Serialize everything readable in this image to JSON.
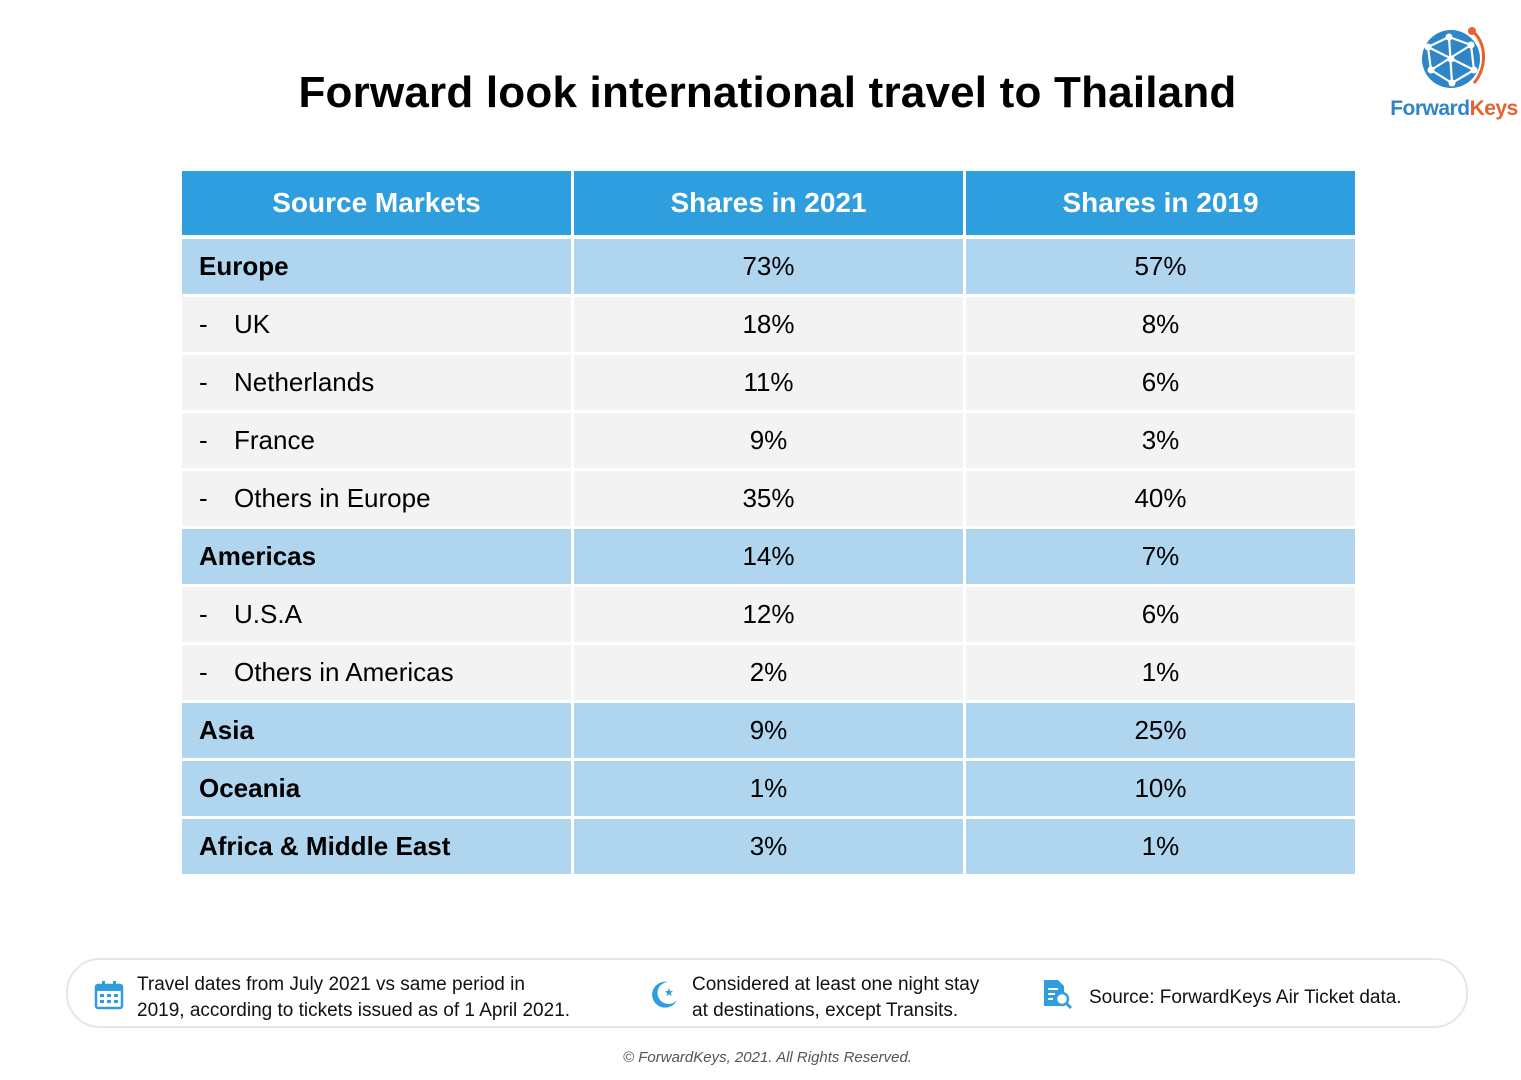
{
  "title": "Forward look international travel to Thailand",
  "logo": {
    "brand_part1": "Forward",
    "brand_part2": "Keys"
  },
  "chart_data": {
    "type": "table",
    "columns": [
      "Source Markets",
      "Shares in 2021",
      "Shares in 2019"
    ],
    "rows": [
      {
        "market": "Europe",
        "prefix": "",
        "is_region": true,
        "share_2021": "73%",
        "share_2019": "57%"
      },
      {
        "market": "UK",
        "prefix": "-",
        "is_region": false,
        "share_2021": "18%",
        "share_2019": "8%"
      },
      {
        "market": "Netherlands",
        "prefix": "-",
        "is_region": false,
        "share_2021": "11%",
        "share_2019": "6%"
      },
      {
        "market": "France",
        "prefix": "-",
        "is_region": false,
        "share_2021": "9%",
        "share_2019": "3%"
      },
      {
        "market": "Others in Europe",
        "prefix": "-",
        "is_region": false,
        "share_2021": "35%",
        "share_2019": "40%"
      },
      {
        "market": "Americas",
        "prefix": "",
        "is_region": true,
        "share_2021": "14%",
        "share_2019": "7%"
      },
      {
        "market": "U.S.A",
        "prefix": "-",
        "is_region": false,
        "share_2021": "12%",
        "share_2019": "6%"
      },
      {
        "market": "Others in Americas",
        "prefix": "-",
        "is_region": false,
        "share_2021": "2%",
        "share_2019": "1%"
      },
      {
        "market": "Asia",
        "prefix": "",
        "is_region": true,
        "share_2021": "9%",
        "share_2019": "25%"
      },
      {
        "market": "Oceania",
        "prefix": "",
        "is_region": true,
        "share_2021": "1%",
        "share_2019": "10%"
      },
      {
        "market": "Africa & Middle East",
        "prefix": "",
        "is_region": true,
        "share_2021": "3%",
        "share_2019": "1%"
      }
    ]
  },
  "colors": {
    "header_bg": "#2f9ede",
    "region_bg": "#afd5ef",
    "sub_bg": "#f3f3f3",
    "brand_blue": "#2f86c7",
    "brand_orange": "#e8602c"
  },
  "notes": [
    {
      "icon": "calendar-icon",
      "line1": "Travel dates from July 2021 vs same period in",
      "line2": "2019, according to tickets issued as of 1 April 2021."
    },
    {
      "icon": "moon-stars-icon",
      "line1": "Considered at least one night stay",
      "line2": "at destinations, except Transits."
    },
    {
      "icon": "document-search-icon",
      "line1": "Source: ForwardKeys Air Ticket data."
    }
  ],
  "copyright": "© ForwardKeys, 2021. All Rights Reserved."
}
